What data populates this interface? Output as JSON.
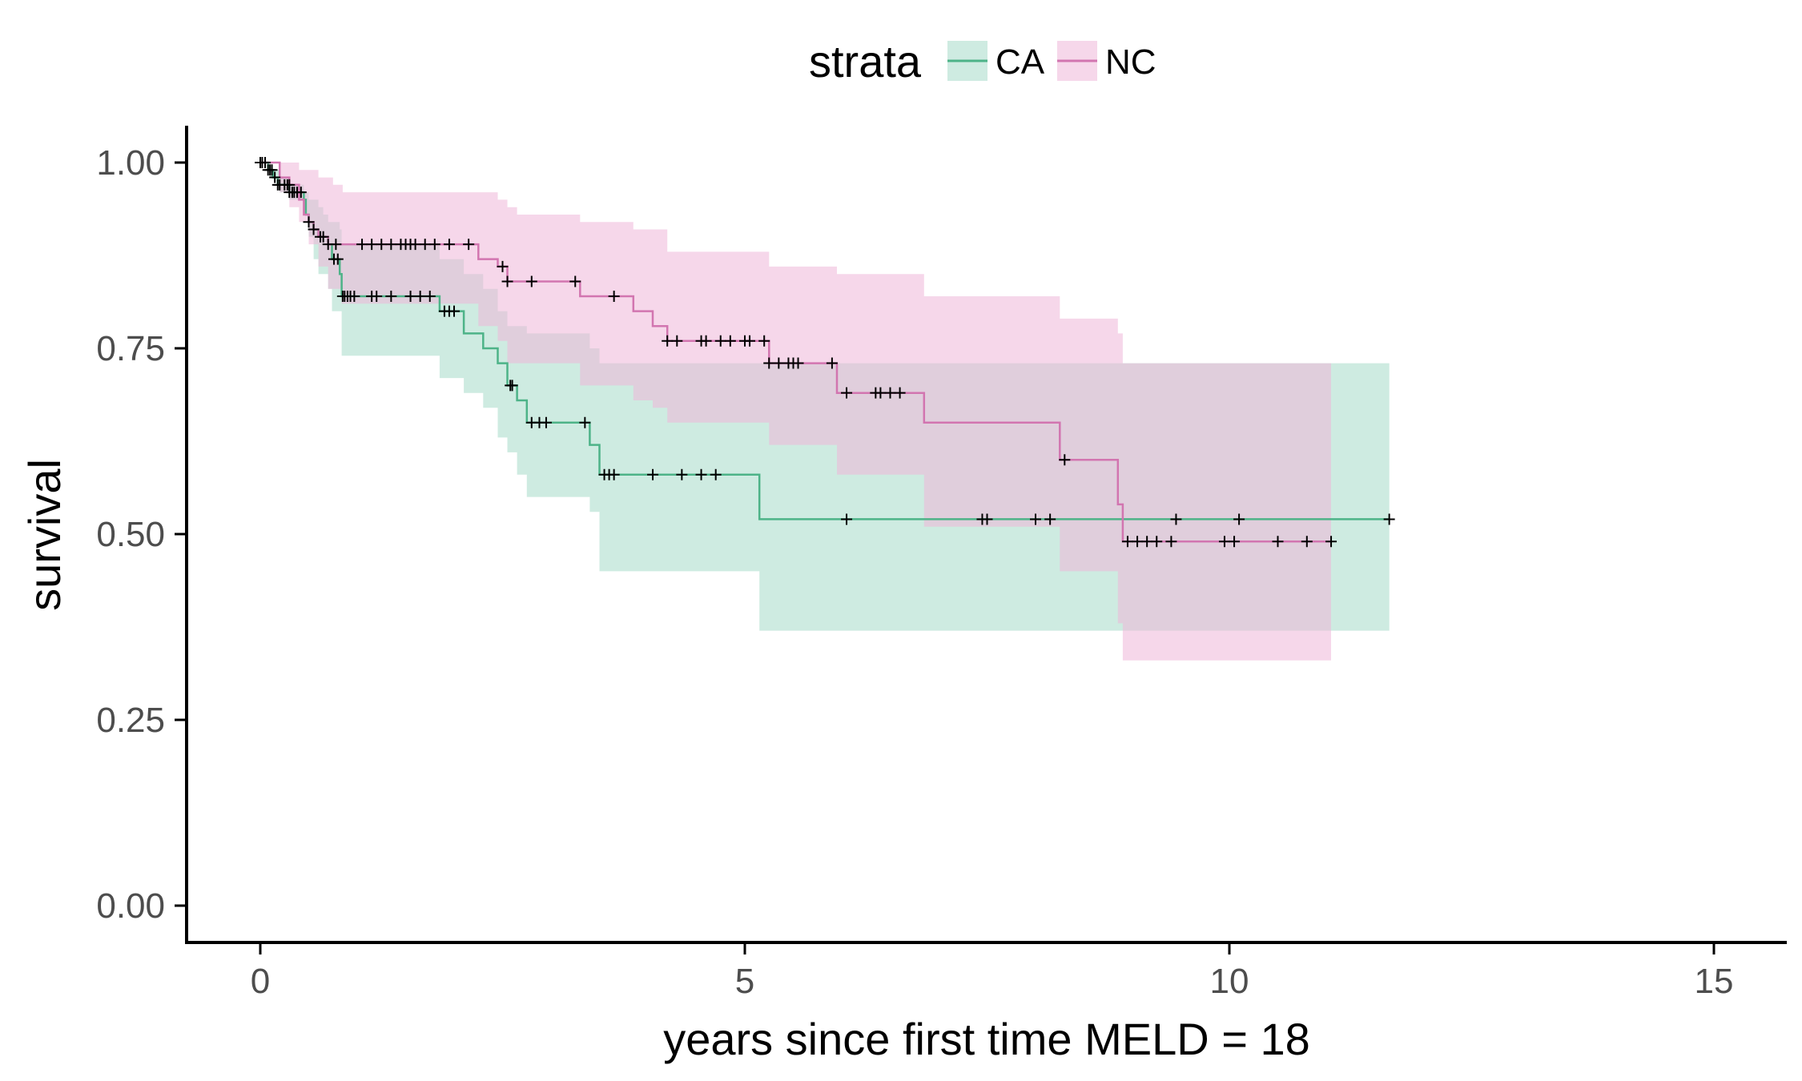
{
  "chart_data": {
    "type": "line",
    "subtype": "kaplan-meier survival curve with confidence bands",
    "title": "",
    "xlabel": "years since first time MELD = 18",
    "ylabel": "survival",
    "xlim": [
      -0.75,
      15.75
    ],
    "ylim": [
      -0.05,
      1.05
    ],
    "x_ticks": [
      0,
      5,
      10,
      15
    ],
    "x_tick_labels": [
      "0",
      "5",
      "10",
      "15"
    ],
    "y_ticks": [
      0,
      0.25,
      0.5,
      0.75,
      1
    ],
    "y_tick_labels": [
      "0.00",
      "0.25",
      "0.50",
      "0.75",
      "1.00"
    ],
    "grid": false,
    "legend": {
      "title": "strata",
      "position": "top",
      "entries": [
        "CA",
        "NC"
      ]
    },
    "series": [
      {
        "name": "CA",
        "color": "#4DB388",
        "band_color": "#A6DBC8",
        "steps": [
          [
            0,
            1.0
          ],
          [
            0.08,
            0.99
          ],
          [
            0.13,
            0.98
          ],
          [
            0.18,
            0.97
          ],
          [
            0.3,
            0.96
          ],
          [
            0.45,
            0.95
          ],
          [
            0.47,
            0.93
          ],
          [
            0.5,
            0.92
          ],
          [
            0.55,
            0.91
          ],
          [
            0.6,
            0.9
          ],
          [
            0.7,
            0.89
          ],
          [
            0.74,
            0.87
          ],
          [
            0.82,
            0.85
          ],
          [
            0.84,
            0.82
          ],
          [
            1.85,
            0.8
          ],
          [
            2.1,
            0.77
          ],
          [
            2.3,
            0.75
          ],
          [
            2.45,
            0.73
          ],
          [
            2.55,
            0.7
          ],
          [
            2.65,
            0.68
          ],
          [
            2.75,
            0.65
          ],
          [
            3.4,
            0.62
          ],
          [
            3.5,
            0.58
          ],
          [
            5.15,
            0.52
          ],
          [
            11.65,
            0.52
          ]
        ],
        "upper": [
          [
            0,
            1.0
          ],
          [
            0.1,
            0.99
          ],
          [
            0.2,
            0.98
          ],
          [
            0.3,
            0.97
          ],
          [
            0.45,
            0.96
          ],
          [
            0.5,
            0.95
          ],
          [
            0.6,
            0.94
          ],
          [
            0.65,
            0.93
          ],
          [
            0.7,
            0.92
          ],
          [
            0.82,
            0.91
          ],
          [
            0.84,
            0.89
          ],
          [
            1.85,
            0.87
          ],
          [
            2.1,
            0.85
          ],
          [
            2.3,
            0.83
          ],
          [
            2.45,
            0.8
          ],
          [
            2.55,
            0.78
          ],
          [
            2.75,
            0.77
          ],
          [
            3.4,
            0.75
          ],
          [
            3.5,
            0.73
          ],
          [
            5.15,
            0.73
          ],
          [
            11.65,
            0.73
          ]
        ],
        "lower": [
          [
            0,
            1.0
          ],
          [
            0.1,
            0.98
          ],
          [
            0.2,
            0.96
          ],
          [
            0.3,
            0.95
          ],
          [
            0.45,
            0.93
          ],
          [
            0.5,
            0.9
          ],
          [
            0.55,
            0.87
          ],
          [
            0.6,
            0.85
          ],
          [
            0.7,
            0.83
          ],
          [
            0.74,
            0.8
          ],
          [
            0.84,
            0.74
          ],
          [
            1.85,
            0.71
          ],
          [
            2.1,
            0.69
          ],
          [
            2.3,
            0.67
          ],
          [
            2.45,
            0.63
          ],
          [
            2.55,
            0.61
          ],
          [
            2.65,
            0.58
          ],
          [
            2.75,
            0.55
          ],
          [
            3.4,
            0.53
          ],
          [
            3.5,
            0.45
          ],
          [
            5.15,
            0.37
          ],
          [
            11.65,
            0.37
          ]
        ],
        "censor_times": [
          0,
          0.02,
          0.05,
          0.08,
          0.1,
          0.12,
          0.15,
          0.18,
          0.2,
          0.25,
          0.28,
          0.3,
          0.33,
          0.35,
          0.38,
          0.42,
          0.55,
          0.62,
          0.7,
          0.76,
          0.8,
          0.85,
          0.87,
          0.9,
          0.93,
          0.97,
          1.15,
          1.2,
          1.35,
          1.55,
          1.65,
          1.75,
          1.9,
          1.95,
          2.0,
          2.58,
          2.6,
          2.8,
          2.88,
          2.95,
          3.35,
          3.55,
          3.6,
          3.65,
          4.05,
          4.35,
          4.55,
          4.7,
          6.05,
          7.45,
          7.5,
          8.0,
          8.15,
          9.45,
          10.1,
          11.65
        ]
      },
      {
        "name": "NC",
        "color": "#D275B0",
        "band_color": "#EFB6D8",
        "steps": [
          [
            0,
            1.0
          ],
          [
            0.2,
            0.98
          ],
          [
            0.3,
            0.97
          ],
          [
            0.4,
            0.95
          ],
          [
            0.45,
            0.93
          ],
          [
            0.5,
            0.92
          ],
          [
            0.55,
            0.91
          ],
          [
            0.6,
            0.9
          ],
          [
            0.7,
            0.89
          ],
          [
            2.25,
            0.87
          ],
          [
            2.45,
            0.86
          ],
          [
            2.55,
            0.84
          ],
          [
            3.3,
            0.82
          ],
          [
            3.85,
            0.8
          ],
          [
            4.05,
            0.78
          ],
          [
            4.2,
            0.76
          ],
          [
            5.25,
            0.73
          ],
          [
            5.95,
            0.69
          ],
          [
            6.85,
            0.65
          ],
          [
            8.25,
            0.6
          ],
          [
            8.85,
            0.54
          ],
          [
            8.9,
            0.49
          ],
          [
            11.05,
            0.49
          ]
        ],
        "upper": [
          [
            0,
            1.0
          ],
          [
            0.4,
            0.99
          ],
          [
            0.6,
            0.98
          ],
          [
            0.75,
            0.97
          ],
          [
            0.85,
            0.96
          ],
          [
            2.45,
            0.95
          ],
          [
            2.55,
            0.94
          ],
          [
            2.65,
            0.93
          ],
          [
            3.3,
            0.92
          ],
          [
            3.85,
            0.91
          ],
          [
            4.2,
            0.88
          ],
          [
            5.25,
            0.86
          ],
          [
            5.95,
            0.85
          ],
          [
            6.85,
            0.82
          ],
          [
            8.25,
            0.79
          ],
          [
            8.85,
            0.77
          ],
          [
            8.9,
            0.73
          ],
          [
            11.05,
            0.73
          ]
        ],
        "lower": [
          [
            0,
            1.0
          ],
          [
            0.2,
            0.96
          ],
          [
            0.3,
            0.94
          ],
          [
            0.4,
            0.92
          ],
          [
            0.5,
            0.89
          ],
          [
            0.6,
            0.86
          ],
          [
            0.7,
            0.83
          ],
          [
            0.84,
            0.81
          ],
          [
            2.25,
            0.78
          ],
          [
            2.45,
            0.76
          ],
          [
            2.55,
            0.73
          ],
          [
            3.3,
            0.7
          ],
          [
            3.85,
            0.68
          ],
          [
            4.05,
            0.67
          ],
          [
            4.2,
            0.65
          ],
          [
            5.25,
            0.62
          ],
          [
            5.95,
            0.58
          ],
          [
            6.85,
            0.51
          ],
          [
            8.25,
            0.45
          ],
          [
            8.85,
            0.38
          ],
          [
            8.9,
            0.33
          ],
          [
            11.05,
            0.33
          ]
        ],
        "censor_times": [
          0.3,
          0.5,
          0.65,
          0.78,
          1.05,
          1.15,
          1.25,
          1.35,
          1.45,
          1.5,
          1.55,
          1.6,
          1.7,
          1.8,
          1.95,
          2.15,
          2.5,
          2.55,
          2.8,
          3.25,
          3.65,
          4.2,
          4.3,
          4.55,
          4.6,
          4.75,
          4.85,
          5.0,
          5.05,
          5.2,
          5.25,
          5.35,
          5.45,
          5.5,
          5.55,
          5.9,
          6.05,
          6.35,
          6.4,
          6.5,
          6.6,
          8.3,
          8.95,
          9.05,
          9.15,
          9.25,
          9.4,
          9.95,
          10.05,
          10.5,
          10.8,
          11.05
        ]
      }
    ]
  }
}
